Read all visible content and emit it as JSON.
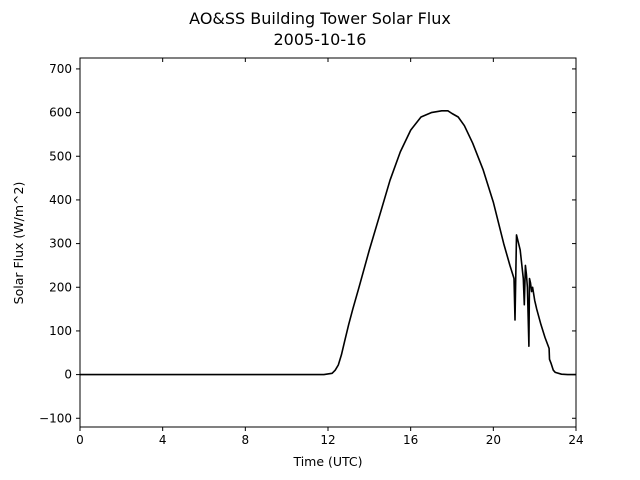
{
  "chart_data": {
    "type": "line",
    "title": "AO&SS Building Tower Solar Flux",
    "subtitle": "2005-10-16",
    "xlabel": "Time (UTC)",
    "ylabel": "Solar Flux (W/m^2)",
    "xlim": [
      0,
      24
    ],
    "ylim": [
      -120,
      725
    ],
    "x_ticks": [
      0,
      4,
      8,
      12,
      16,
      20,
      24
    ],
    "y_ticks": [
      -100,
      0,
      100,
      200,
      300,
      400,
      500,
      600,
      700
    ],
    "grid": false,
    "line_color": "#000000",
    "series": [
      {
        "x": [
          0,
          2,
          4,
          6,
          8,
          10,
          11,
          11.8,
          12.2,
          12.35,
          12.5,
          12.65,
          12.8,
          13.0,
          13.2,
          13.5,
          14.0,
          14.5,
          15.0,
          15.5,
          16.0,
          16.5,
          17.0,
          17.5,
          17.8,
          18.0,
          18.3,
          18.6,
          19.0,
          19.5,
          20.0,
          20.5,
          20.8,
          21.0,
          21.05,
          21.12,
          21.2,
          21.3,
          21.45,
          21.5,
          21.55,
          21.6,
          21.65,
          21.72,
          21.75,
          21.8,
          21.85,
          21.9,
          22.0,
          22.1,
          22.3,
          22.5,
          22.7,
          22.72,
          22.8,
          22.9,
          23.0,
          23.3,
          23.6,
          24.0
        ],
        "y": [
          0,
          0,
          0,
          0,
          0,
          0,
          0,
          0,
          3,
          10,
          22,
          45,
          75,
          115,
          150,
          200,
          285,
          365,
          445,
          510,
          560,
          590,
          600,
          604,
          604,
          598,
          590,
          570,
          530,
          470,
          395,
          300,
          250,
          220,
          125,
          320,
          305,
          285,
          220,
          160,
          250,
          230,
          200,
          65,
          220,
          210,
          190,
          200,
          170,
          150,
          115,
          85,
          60,
          35,
          25,
          10,
          5,
          1,
          0,
          0
        ]
      }
    ]
  }
}
